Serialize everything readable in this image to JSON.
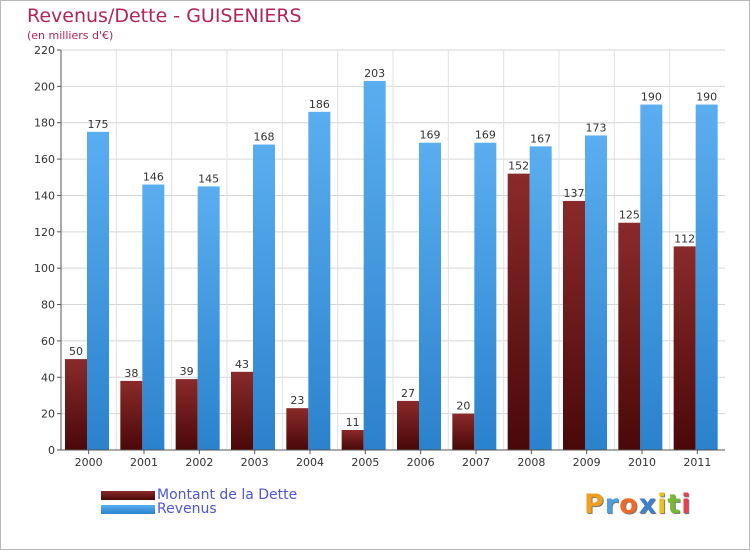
{
  "title": "Revenus/Dette - GUISENIERS",
  "subtitle": "(en milliers d'€)",
  "colors": {
    "dette": "#7a1c1c",
    "revenus": "#3f9be0",
    "title": "#b2245a",
    "legend_text": "#4e55d6"
  },
  "chart_data": {
    "type": "bar",
    "title": "Revenus/Dette - GUISENIERS",
    "ylabel": "(en milliers d'€)",
    "ylim": [
      0,
      220
    ],
    "yticks": [
      0,
      20,
      40,
      60,
      80,
      100,
      120,
      140,
      160,
      180,
      200,
      220
    ],
    "grid": true,
    "legend_position": "bottom-left",
    "categories": [
      "2000",
      "2001",
      "2002",
      "2003",
      "2004",
      "2005",
      "2006",
      "2007",
      "2008",
      "2009",
      "2010",
      "2011"
    ],
    "series": [
      {
        "name": "Montant de la Dette",
        "values": [
          50,
          38,
          39,
          43,
          23,
          11,
          27,
          20,
          152,
          137,
          125,
          112
        ]
      },
      {
        "name": "Revenus",
        "values": [
          175,
          146,
          145,
          168,
          186,
          203,
          169,
          169,
          167,
          173,
          190,
          190
        ]
      }
    ]
  },
  "legend": {
    "items": [
      {
        "label": "Montant de la Dette"
      },
      {
        "label": "Revenus"
      }
    ]
  },
  "logo": {
    "text": "Proxiti",
    "letter_colors": [
      "#f0a020",
      "#4aa0e0",
      "#ef6a28",
      "#3b7fd0",
      "#e8c020",
      "#78b832",
      "#e94050"
    ]
  }
}
